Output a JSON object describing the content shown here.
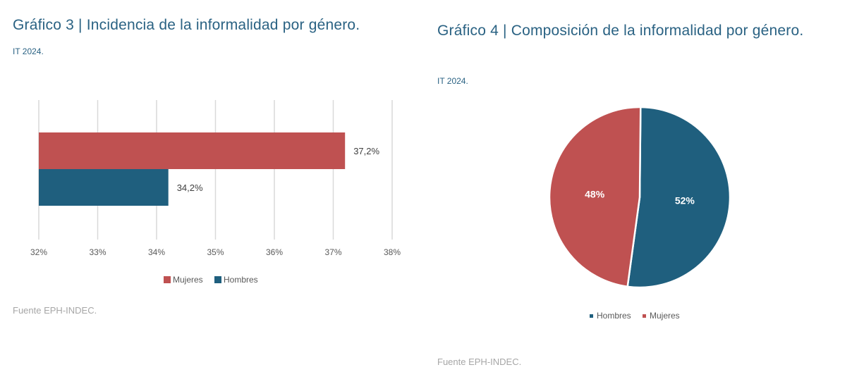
{
  "colors": {
    "mujeres": "#bf5151",
    "hombres": "#1f5f7e",
    "grid": "#d9d9d9",
    "title": "#2a6283"
  },
  "chart_data": [
    {
      "type": "bar",
      "orientation": "horizontal",
      "title": "Gráfico 3 | Incidencia de la informalidad por género.",
      "subtitle": "IT 2024.",
      "source": "Fuente EPH-INDEC.",
      "series": [
        {
          "name": "Mujeres",
          "values": [
            37.2
          ],
          "label": "37,2%"
        },
        {
          "name": "Hombres",
          "values": [
            34.2
          ],
          "label": "34,2%"
        }
      ],
      "xlim": [
        32,
        38
      ],
      "xticks": [
        "32%",
        "33%",
        "34%",
        "35%",
        "36%",
        "37%",
        "38%"
      ],
      "grid": true,
      "legend": "bottom"
    },
    {
      "type": "pie",
      "title": "Gráfico 4 | Composición de la informalidad por género.",
      "subtitle": "IT 2024.",
      "source": "Fuente EPH-INDEC.",
      "slices": [
        {
          "name": "Hombres",
          "value": 52,
          "label": "52%"
        },
        {
          "name": "Mujeres",
          "value": 48,
          "label": "48%"
        }
      ],
      "legend": "bottom"
    }
  ]
}
